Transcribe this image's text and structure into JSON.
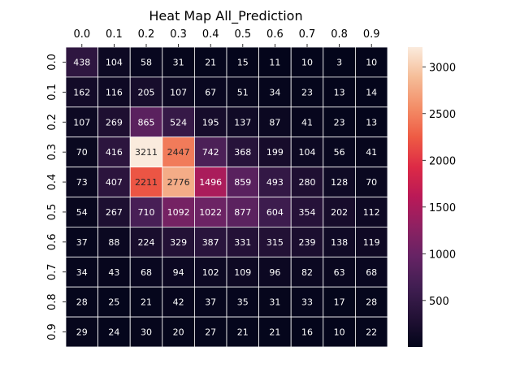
{
  "chart_data": {
    "type": "heatmap",
    "title": "Heat Map All_Prediction",
    "x_categories": [
      "0.0",
      "0.1",
      "0.2",
      "0.3",
      "0.4",
      "0.5",
      "0.6",
      "0.7",
      "0.8",
      "0.9"
    ],
    "y_categories": [
      "0.0",
      "0.1",
      "0.2",
      "0.3",
      "0.4",
      "0.5",
      "0.6",
      "0.7",
      "0.8",
      "0.9"
    ],
    "x_tick_position": "top",
    "values": [
      [
        438,
        104,
        58,
        31,
        21,
        15,
        11,
        10,
        3,
        10
      ],
      [
        162,
        116,
        205,
        107,
        67,
        51,
        34,
        23,
        13,
        14
      ],
      [
        107,
        269,
        865,
        524,
        195,
        137,
        87,
        41,
        23,
        13
      ],
      [
        70,
        416,
        3211,
        2447,
        742,
        368,
        199,
        104,
        56,
        41
      ],
      [
        73,
        407,
        2211,
        2776,
        1496,
        859,
        493,
        280,
        128,
        70
      ],
      [
        54,
        267,
        710,
        1092,
        1022,
        877,
        604,
        354,
        202,
        112
      ],
      [
        37,
        88,
        224,
        329,
        387,
        331,
        315,
        239,
        138,
        119
      ],
      [
        34,
        43,
        68,
        94,
        102,
        109,
        96,
        82,
        63,
        68
      ],
      [
        28,
        25,
        21,
        42,
        37,
        35,
        31,
        33,
        17,
        28
      ],
      [
        29,
        24,
        30,
        20,
        27,
        21,
        21,
        16,
        10,
        22
      ]
    ],
    "colormap": "rocket",
    "value_range": [
      3,
      3211
    ],
    "colorbar_ticks": [
      500,
      1000,
      1500,
      2000,
      2500,
      3000
    ],
    "colorbar_tick_labels": [
      "500",
      "1000",
      "1500",
      "2000",
      "2500",
      "3000"
    ],
    "annotated": true,
    "grid": false
  }
}
